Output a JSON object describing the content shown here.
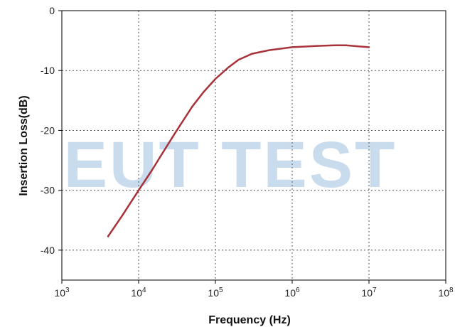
{
  "chart_data": {
    "type": "line",
    "title": "",
    "xlabel": "Frequency (Hz)",
    "ylabel": "Insertion Loss(dB)",
    "x_scale": "log",
    "xlim": [
      1000,
      100000000
    ],
    "ylim": [
      -45,
      0
    ],
    "x_ticks": [
      {
        "value": 1000,
        "base": "10",
        "exp": "3"
      },
      {
        "value": 10000,
        "base": "10",
        "exp": "4"
      },
      {
        "value": 100000,
        "base": "10",
        "exp": "5"
      },
      {
        "value": 1000000,
        "base": "10",
        "exp": "6"
      },
      {
        "value": 10000000,
        "base": "10",
        "exp": "7"
      },
      {
        "value": 100000000,
        "base": "10",
        "exp": "8"
      }
    ],
    "y_ticks": [
      {
        "value": 0,
        "label": "0"
      },
      {
        "value": -10,
        "label": "-10"
      },
      {
        "value": -20,
        "label": "-20"
      },
      {
        "value": -30,
        "label": "-30"
      },
      {
        "value": -40,
        "label": "-40"
      }
    ],
    "grid": true,
    "watermark": "EUT TEST",
    "series": [
      {
        "color": "#a8323a",
        "x": [
          4000,
          6000,
          10000,
          15000,
          20000,
          30000,
          50000,
          70000,
          100000,
          150000,
          200000,
          300000,
          500000,
          1000000,
          2000000,
          3500000,
          5000000,
          10000000
        ],
        "y": [
          -37.7,
          -34.4,
          -30.0,
          -26.6,
          -24.0,
          -20.4,
          -16.0,
          -13.6,
          -11.4,
          -9.4,
          -8.2,
          -7.2,
          -6.6,
          -6.1,
          -5.9,
          -5.8,
          -5.8,
          -6.1
        ]
      }
    ]
  }
}
